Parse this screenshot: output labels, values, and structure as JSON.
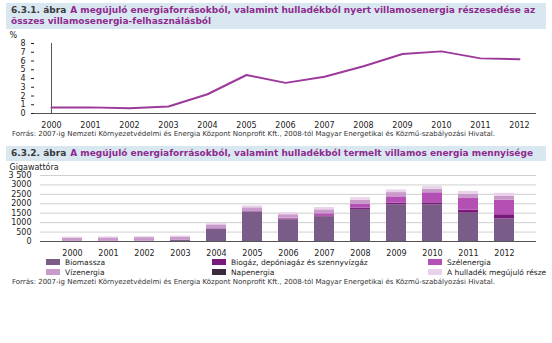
{
  "chart_data": [
    {
      "type": "line",
      "figure_number": "6.3.1. ábra",
      "title": "A megújuló energiaforrásokból, valamint hulladékból nyert villamosenergia részesedése az összes villamosenergia-felhasználásból",
      "y_label": "%",
      "categories": [
        "2000",
        "2001",
        "2002",
        "2003",
        "2004",
        "2005",
        "2006",
        "2007",
        "2008",
        "2009",
        "2010",
        "2011",
        "2012"
      ],
      "values": [
        0.7,
        0.7,
        0.6,
        0.8,
        2.2,
        4.4,
        3.5,
        4.2,
        5.4,
        6.8,
        7.1,
        6.3,
        6.2
      ],
      "color": "#9b3a9b",
      "ylim": [
        0,
        8
      ],
      "yticks": [
        0,
        1,
        2,
        3,
        4,
        5,
        6,
        7,
        8
      ],
      "grid": false,
      "source": "Forrás: 2007-ig Nemzeti Környezetvédelmi és Energia Központ Nonprofit Kft., 2008-tól Magyar Energetikai és Közmű-szabályozási Hivatal."
    },
    {
      "type": "bar",
      "stacked": true,
      "figure_number": "6.3.2. ábra",
      "title": "A megújuló energiaforrásokból, valamint hulladékból termelt villamos energia mennyisége",
      "y_label": "Gigawattóra",
      "categories": [
        "2000",
        "2001",
        "2002",
        "2003",
        "2004",
        "2005",
        "2006",
        "2007",
        "2008",
        "2009",
        "2010",
        "2011",
        "2012"
      ],
      "series": [
        {
          "name": "Biomassza",
          "color": "#7a5c88",
          "values": [
            0,
            0,
            0,
            50,
            650,
            1550,
            1150,
            1300,
            1700,
            1950,
            1950,
            1500,
            1200
          ]
        },
        {
          "name": "Biogáz, depóniagáz és szennyvízgáz",
          "color": "#7a1a7a",
          "values": [
            5,
            5,
            10,
            15,
            20,
            25,
            40,
            60,
            70,
            85,
            100,
            160,
            220
          ]
        },
        {
          "name": "Szélenergia",
          "color": "#b450b4",
          "values": [
            0,
            1,
            1,
            4,
            6,
            10,
            43,
            110,
            205,
            331,
            534,
            626,
            770
          ]
        },
        {
          "name": "Vízenergia",
          "color": "#c99bcb",
          "values": [
            178,
            186,
            194,
            171,
            205,
            202,
            186,
            210,
            213,
            228,
            188,
            223,
            213
          ]
        },
        {
          "name": "Napenergia",
          "color": "#3b2b3b",
          "values": [
            0,
            0,
            0,
            0,
            0,
            0,
            0,
            0,
            0,
            0,
            0,
            1,
            3
          ]
        },
        {
          "name": "A hulladék megújuló része",
          "color": "#ead3ea",
          "values": [
            50,
            50,
            50,
            50,
            60,
            100,
            110,
            120,
            130,
            140,
            150,
            150,
            150
          ]
        }
      ],
      "ylim": [
        0,
        3500
      ],
      "yticks": [
        0,
        500,
        1000,
        1500,
        2000,
        2500,
        3000,
        {
          "value": 3500,
          "label": "3 500"
        }
      ],
      "grid": true,
      "legend": "bottom",
      "source": "Forrás: 2007-ig Nemzeti Környezetvédelmi és Energia Központ Nonprofit Kft., 2008-tól Magyar Energetikai és Közmű-szabályozási Hivatal."
    }
  ]
}
